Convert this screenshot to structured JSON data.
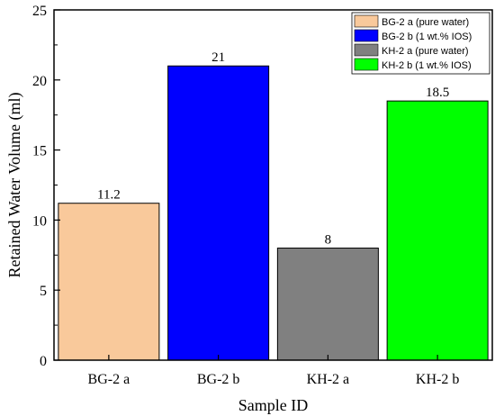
{
  "chart_data": {
    "type": "bar",
    "categories": [
      "BG-2 a",
      "BG-2 b",
      "KH-2 a",
      "KH-2 b"
    ],
    "values": [
      11.2,
      21,
      8,
      18.5
    ],
    "data_labels": [
      "11.2",
      "21",
      "8",
      "18.5"
    ],
    "colors": [
      "#F9C99B",
      "#0000FF",
      "#808080",
      "#00FF00"
    ],
    "legend": [
      {
        "label": "BG-2 a (pure water)",
        "color": "#F9C99B"
      },
      {
        "label": "BG-2 b (1 wt.% IOS)",
        "color": "#0000FF"
      },
      {
        "label": "KH-2 a (pure water)",
        "color": "#808080"
      },
      {
        "label": "KH-2 b (1 wt.% IOS)",
        "color": "#00FF00"
      }
    ],
    "legend_position": "top-right",
    "xlabel": "Sample ID",
    "ylabel": "Retained Water Volume (ml)",
    "ylim": [
      0,
      25
    ],
    "yticks": [
      0,
      5,
      10,
      15,
      20,
      25
    ],
    "ytick_labels": [
      "0",
      "5",
      "10",
      "15",
      "20",
      "25"
    ],
    "grid": false
  }
}
